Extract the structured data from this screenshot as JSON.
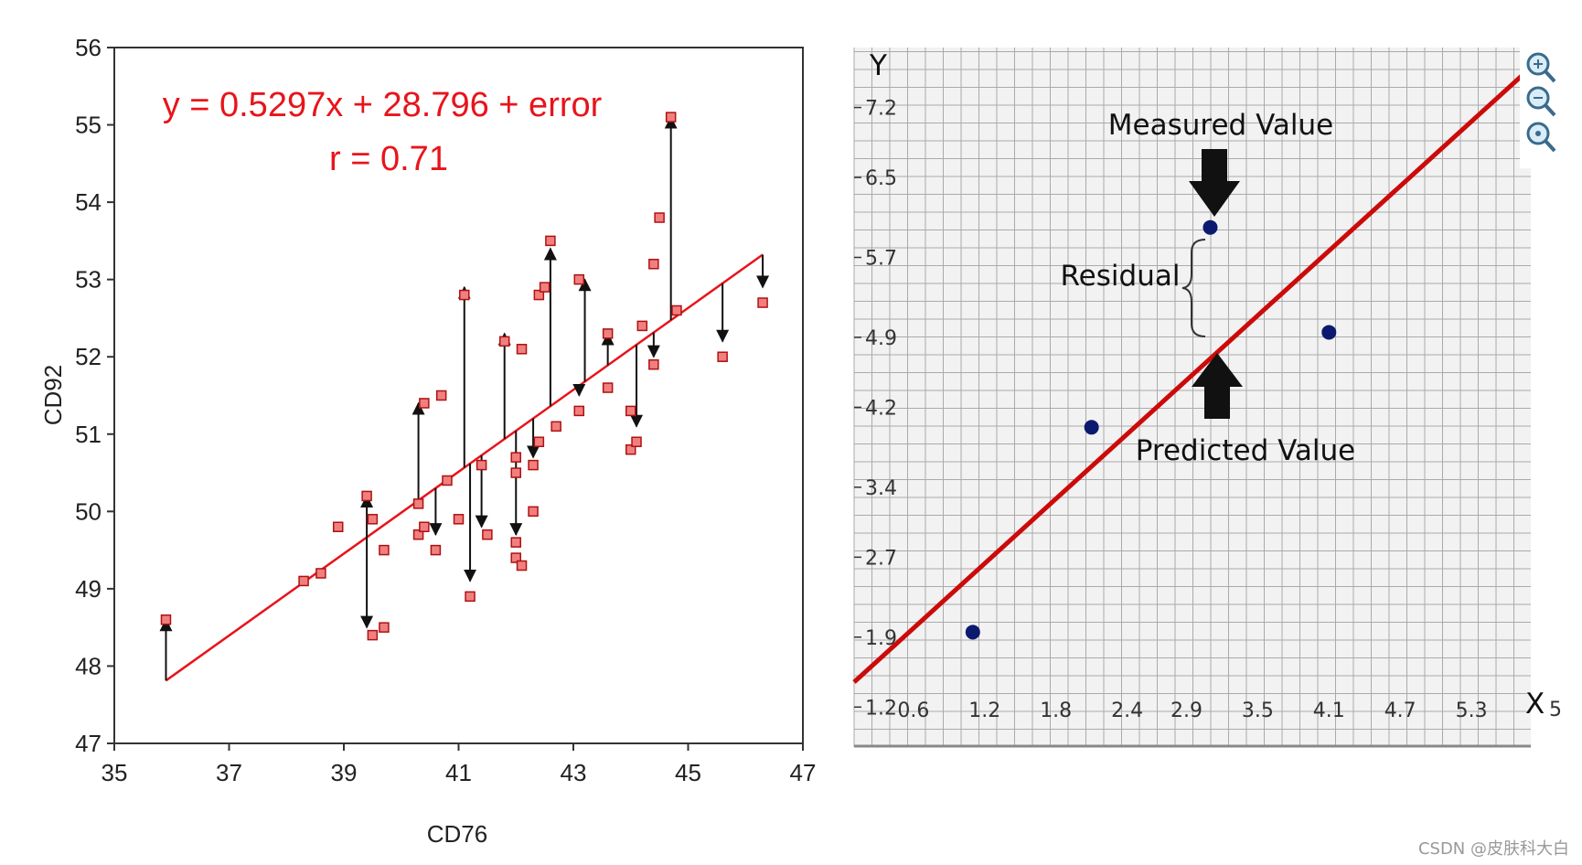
{
  "watermark": "CSDN @皮肤科大白",
  "colors": {
    "left_line": "#e8141b",
    "left_marker_fill": "#f08080",
    "left_marker_stroke": "#b01010",
    "right_line": "#cc0a0a",
    "right_point": "#0b1a6e",
    "grid": "#aaaaaa"
  },
  "zoom_icons": [
    "zoom-in-icon",
    "zoom-out-icon",
    "zoom-reset-icon"
  ],
  "chart_data": [
    {
      "type": "scatter",
      "xlabel": "CD76",
      "ylabel": "CD92",
      "xlim": [
        35,
        47
      ],
      "ylim": [
        47,
        56
      ],
      "xticks": [
        "35",
        "37",
        "39",
        "41",
        "43",
        "45",
        "47"
      ],
      "yticks": [
        "47",
        "48",
        "49",
        "50",
        "51",
        "52",
        "53",
        "54",
        "55",
        "56"
      ],
      "grid": false,
      "annotations": [
        "y = 0.5297x + 28.796 + error",
        "r = 0.71"
      ],
      "regression": {
        "slope": 0.5297,
        "intercept": 28.796,
        "x_range": [
          35.9,
          46.3
        ]
      },
      "points": [
        {
          "x": 35.9,
          "y": 48.6
        },
        {
          "x": 38.3,
          "y": 49.1
        },
        {
          "x": 38.6,
          "y": 49.2
        },
        {
          "x": 38.9,
          "y": 49.8
        },
        {
          "x": 39.4,
          "y": 50.2
        },
        {
          "x": 39.5,
          "y": 48.4
        },
        {
          "x": 39.5,
          "y": 49.9
        },
        {
          "x": 39.7,
          "y": 48.5
        },
        {
          "x": 39.7,
          "y": 49.5
        },
        {
          "x": 40.3,
          "y": 50.1
        },
        {
          "x": 40.3,
          "y": 49.7
        },
        {
          "x": 40.4,
          "y": 51.4
        },
        {
          "x": 40.4,
          "y": 49.8
        },
        {
          "x": 40.6,
          "y": 49.5
        },
        {
          "x": 40.7,
          "y": 51.5
        },
        {
          "x": 40.8,
          "y": 50.4
        },
        {
          "x": 41.0,
          "y": 49.9
        },
        {
          "x": 41.1,
          "y": 52.8
        },
        {
          "x": 41.2,
          "y": 48.9
        },
        {
          "x": 41.4,
          "y": 50.6
        },
        {
          "x": 41.5,
          "y": 49.7
        },
        {
          "x": 41.8,
          "y": 52.2
        },
        {
          "x": 42.0,
          "y": 50.7
        },
        {
          "x": 42.0,
          "y": 50.5
        },
        {
          "x": 42.0,
          "y": 49.6
        },
        {
          "x": 42.0,
          "y": 49.4
        },
        {
          "x": 42.1,
          "y": 49.3
        },
        {
          "x": 42.1,
          "y": 52.1
        },
        {
          "x": 42.3,
          "y": 50.6
        },
        {
          "x": 42.3,
          "y": 50.0
        },
        {
          "x": 42.4,
          "y": 50.9
        },
        {
          "x": 42.4,
          "y": 52.8
        },
        {
          "x": 42.5,
          "y": 52.9
        },
        {
          "x": 42.6,
          "y": 53.5
        },
        {
          "x": 42.7,
          "y": 51.1
        },
        {
          "x": 43.1,
          "y": 51.3
        },
        {
          "x": 43.1,
          "y": 53.0
        },
        {
          "x": 43.6,
          "y": 51.6
        },
        {
          "x": 43.6,
          "y": 52.3
        },
        {
          "x": 44.0,
          "y": 51.3
        },
        {
          "x": 44.0,
          "y": 50.8
        },
        {
          "x": 44.1,
          "y": 50.9
        },
        {
          "x": 44.2,
          "y": 52.4
        },
        {
          "x": 44.4,
          "y": 53.2
        },
        {
          "x": 44.4,
          "y": 51.9
        },
        {
          "x": 44.5,
          "y": 53.8
        },
        {
          "x": 44.7,
          "y": 55.1
        },
        {
          "x": 44.8,
          "y": 52.6
        },
        {
          "x": 45.6,
          "y": 52.0
        },
        {
          "x": 46.3,
          "y": 52.7
        }
      ],
      "residual_arrows": [
        {
          "x": 35.9,
          "y": 48.6
        },
        {
          "x": 39.4,
          "y": 50.2
        },
        {
          "x": 39.4,
          "y": 48.5
        },
        {
          "x": 40.3,
          "y": 51.4
        },
        {
          "x": 40.6,
          "y": 49.7
        },
        {
          "x": 41.1,
          "y": 52.9
        },
        {
          "x": 41.2,
          "y": 49.1
        },
        {
          "x": 41.4,
          "y": 49.8
        },
        {
          "x": 41.8,
          "y": 52.3
        },
        {
          "x": 42.0,
          "y": 49.7
        },
        {
          "x": 42.3,
          "y": 50.7
        },
        {
          "x": 42.6,
          "y": 53.4
        },
        {
          "x": 43.1,
          "y": 51.5
        },
        {
          "x": 43.2,
          "y": 53.0
        },
        {
          "x": 43.6,
          "y": 52.3
        },
        {
          "x": 44.1,
          "y": 51.1
        },
        {
          "x": 44.4,
          "y": 52.0
        },
        {
          "x": 44.7,
          "y": 55.1
        },
        {
          "x": 45.6,
          "y": 52.2
        },
        {
          "x": 46.3,
          "y": 52.9
        }
      ]
    },
    {
      "type": "scatter",
      "xlabel": "X",
      "ylabel": "Y",
      "xlim": [
        0.1,
        5.8
      ],
      "ylim": [
        0.8,
        7.8
      ],
      "xticks": [
        "0.6",
        "1.2",
        "1.8",
        "2.4",
        "2.9",
        "3.5",
        "4.1",
        "4.7",
        "5.3"
      ],
      "xtick_values": [
        0.6,
        1.2,
        1.8,
        2.4,
        2.9,
        3.5,
        4.1,
        4.7,
        5.3
      ],
      "yticks": [
        "1.2",
        "1.9",
        "2.7",
        "3.4",
        "4.2",
        "4.9",
        "5.7",
        "6.5",
        "7.2"
      ],
      "ytick_values": [
        1.2,
        1.9,
        2.7,
        3.4,
        4.2,
        4.9,
        5.7,
        6.5,
        7.2
      ],
      "extra_tick_label": "5",
      "grid": true,
      "points": [
        {
          "x": 1.1,
          "y": 1.95
        },
        {
          "x": 2.1,
          "y": 4.0
        },
        {
          "x": 3.1,
          "y": 6.0
        },
        {
          "x": 4.1,
          "y": 4.95
        }
      ],
      "regression": {
        "x1": 0.1,
        "y1": 1.45,
        "x2": 5.8,
        "y2": 7.6
      },
      "annotations": {
        "measured": "Measured Value",
        "residual": "Residual",
        "predicted": "Predicted Value"
      }
    }
  ]
}
